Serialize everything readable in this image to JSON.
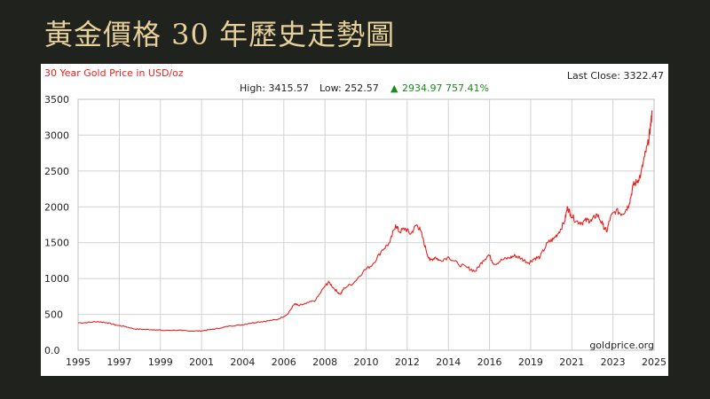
{
  "slide": {
    "title": "黃金價格 30 年歷史走勢圖"
  },
  "colors": {
    "background": "#20221d",
    "title": "#e5cf9a",
    "line": "#e8231f",
    "gain": "#1a8a1a"
  },
  "chart_data": {
    "type": "line",
    "title": "30 Year Gold Price in USD/oz",
    "last_close_text": "Last Close: 3322.47",
    "stats": {
      "high_text": "High: 3415.57",
      "low_text": "Low: 252.57",
      "change_text": "2934.97 757.41%",
      "arrow": "▲"
    },
    "watermark": "goldprice.org",
    "x_ticks": [
      "1995",
      "1997",
      "1999",
      "2001",
      "2004",
      "2006",
      "2008",
      "2010",
      "2012",
      "2014",
      "2016",
      "2019",
      "2021",
      "2023",
      "2025"
    ],
    "y_ticks": [
      "3500",
      "3000",
      "2500",
      "2000",
      "1500",
      "1000",
      "500",
      "0.0"
    ],
    "ylim": [
      0,
      3500
    ],
    "xlim": [
      1995.0,
      2025.3
    ],
    "grid": true,
    "series": [
      {
        "x": [
          1995.0,
          1995.5,
          1996.0,
          1996.5,
          1997.0,
          1997.5,
          1998.0,
          1998.5,
          1999.0,
          1999.5,
          2000.0,
          2000.5,
          2001.0,
          2001.5,
          2002.0,
          2002.5,
          2003.0,
          2003.5,
          2004.0,
          2004.5,
          2005.0,
          2005.5,
          2006.0,
          2006.4,
          2006.6,
          2007.0,
          2007.5,
          2008.0,
          2008.2,
          2008.5,
          2008.8,
          2009.0,
          2009.5,
          2010.0,
          2010.5,
          2011.0,
          2011.4,
          2011.7,
          2011.9,
          2012.2,
          2012.5,
          2012.8,
          2013.0,
          2013.3,
          2013.5,
          2013.8,
          2014.0,
          2014.5,
          2015.0,
          2015.5,
          2015.9,
          2016.3,
          2016.6,
          2016.9,
          2017.3,
          2017.7,
          2018.0,
          2018.3,
          2018.7,
          2019.0,
          2019.3,
          2019.7,
          2020.0,
          2020.3,
          2020.6,
          2020.75,
          2020.9,
          2021.2,
          2021.5,
          2021.8,
          2022.0,
          2022.3,
          2022.6,
          2022.8,
          2023.0,
          2023.3,
          2023.6,
          2023.8,
          2024.0,
          2024.2,
          2024.4,
          2024.6,
          2024.8,
          2025.0,
          2025.1,
          2025.2
        ],
        "y": [
          383,
          386,
          400,
          385,
          350,
          330,
          295,
          290,
          287,
          275,
          280,
          275,
          268,
          270,
          290,
          310,
          340,
          350,
          375,
          395,
          410,
          430,
          500,
          650,
          620,
          650,
          700,
          900,
          950,
          850,
          780,
          870,
          940,
          1100,
          1200,
          1400,
          1500,
          1750,
          1650,
          1700,
          1620,
          1750,
          1680,
          1400,
          1250,
          1300,
          1250,
          1300,
          1200,
          1150,
          1100,
          1250,
          1330,
          1200,
          1260,
          1290,
          1320,
          1280,
          1220,
          1280,
          1300,
          1500,
          1550,
          1650,
          1800,
          2000,
          1900,
          1800,
          1780,
          1820,
          1800,
          1900,
          1750,
          1650,
          1850,
          1950,
          1900,
          1950,
          2050,
          2300,
          2350,
          2450,
          2700,
          2900,
          3100,
          3322
        ]
      }
    ]
  }
}
